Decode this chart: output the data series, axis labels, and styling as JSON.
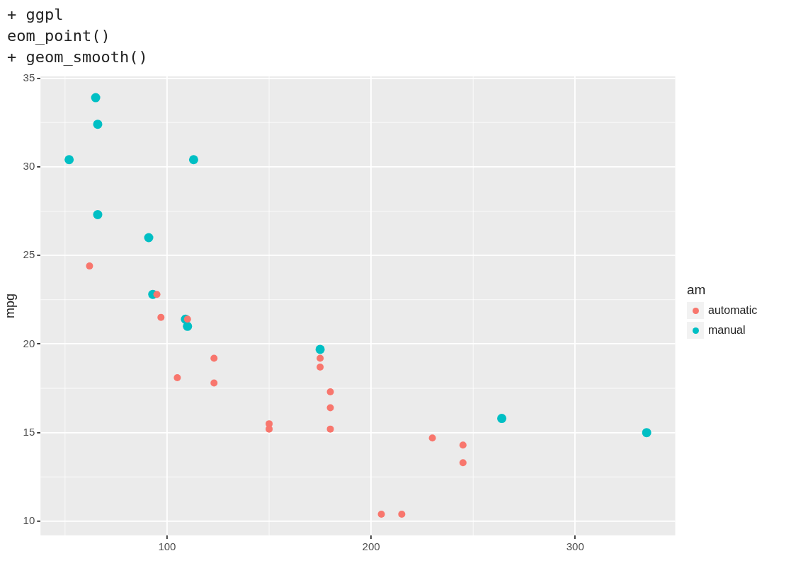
{
  "chart_data": {
    "type": "scatter",
    "ylabel": "mpg",
    "legend_title": "am",
    "annotations": [
      "+ ggpl",
      "eom_point()",
      "+ geom_smooth()"
    ],
    "xlim": [
      38,
      349
    ],
    "xticks": [
      100,
      200,
      300
    ],
    "ylim": [
      9.2,
      35.1
    ],
    "yticks": [
      10,
      15,
      20,
      25,
      30,
      35
    ],
    "grid": true,
    "legend": "right",
    "marker": "circle",
    "series": [
      {
        "name": "automatic",
        "color": "#f8766d",
        "x": [
          110,
          175,
          105,
          245,
          62,
          95,
          123,
          123,
          180,
          180,
          180,
          205,
          215,
          230,
          97,
          150,
          150,
          245,
          175
        ],
        "values": [
          21.4,
          18.7,
          18.1,
          14.3,
          24.4,
          22.8,
          19.2,
          17.8,
          16.4,
          17.3,
          15.2,
          10.4,
          10.4,
          14.7,
          21.5,
          15.5,
          15.2,
          13.3,
          19.2
        ]
      },
      {
        "name": "manual",
        "color": "#00bfc4",
        "x": [
          110,
          93,
          66,
          52,
          65,
          66,
          91,
          113,
          264,
          175,
          335,
          109
        ],
        "values": [
          21.0,
          22.8,
          32.4,
          30.4,
          33.9,
          27.3,
          26.0,
          30.4,
          15.8,
          19.7,
          15.0,
          21.4
        ]
      }
    ]
  }
}
